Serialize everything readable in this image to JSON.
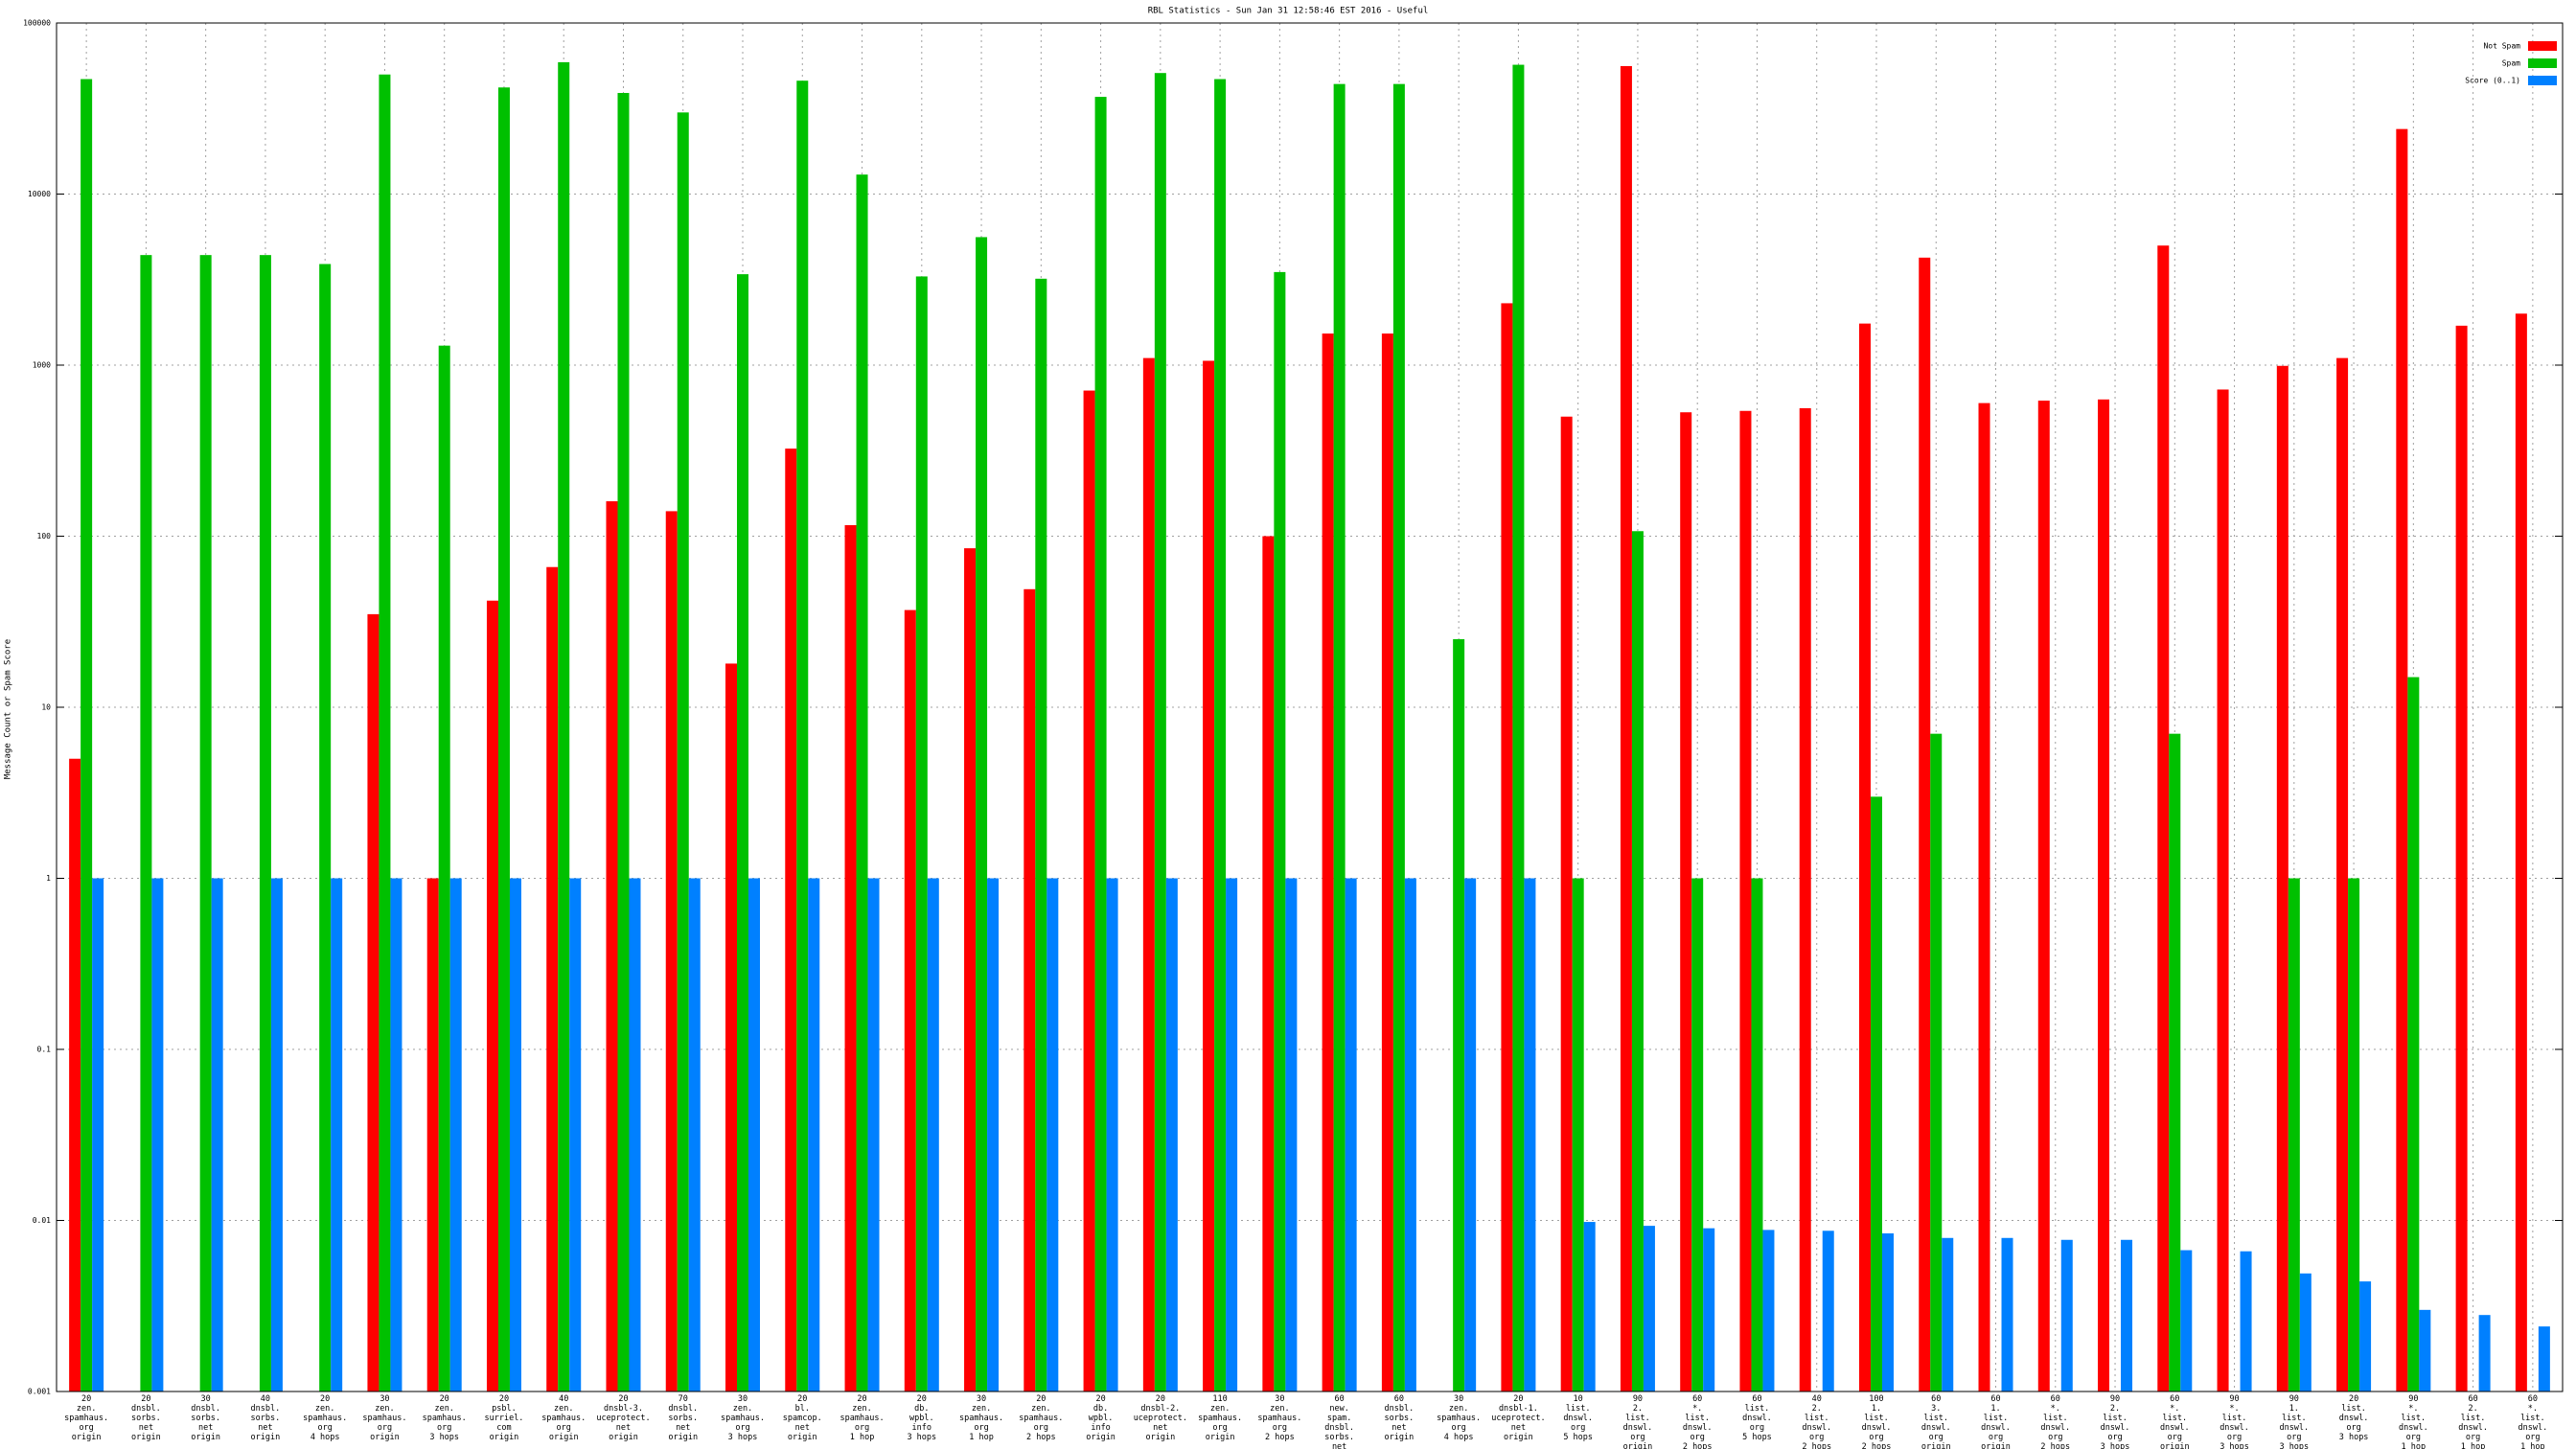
{
  "chart_data": {
    "type": "bar",
    "title": "RBL Statistics - Sun Jan 31 12:58:46 EST 2016 - Useful",
    "ylabel": "Message Count or Spam Score",
    "log_y": true,
    "grid": true,
    "legend": "top-right",
    "categories": [
      "20\nzen.\nspamhaus.\norg\norigin",
      "20\ndnsbl.\nsorbs.\nnet\norigin",
      "30\ndnsbl.\nsorbs.\nnet\norigin",
      "40\ndnsbl.\nsorbs.\nnet\norigin",
      "20\nzen.\nspamhaus.\norg\n4 hops",
      "30\nzen.\nspamhaus.\norg\norigin",
      "20\nzen.\nspamhaus.\norg\n3 hops",
      "20\npsbl.\nsurriel.\ncom\norigin",
      "40\nzen.\nspamhaus.\norg\norigin",
      "20\ndnsbl-3.\nuceprotect.\nnet\norigin",
      "70\ndnsbl.\nsorbs.\nnet\norigin",
      "30\nzen.\nspamhaus.\norg\n3 hops",
      "20\nbl.\nspamcop.\nnet\norigin",
      "20\nzen.\nspamhaus.\norg\n1 hop",
      "20\ndb.\nwpbl.\ninfo\n3 hops",
      "30\nzen.\nspamhaus.\norg\n1 hop",
      "20\nzen.\nspamhaus.\norg\n2 hops",
      "20\ndb.\nwpbl.\ninfo\norigin",
      "20\ndnsbl-2.\nuceprotect.\nnet\norigin",
      "110\nzen.\nspamhaus.\norg\norigin",
      "30\nzen.\nspamhaus.\norg\n2 hops",
      "60\nnew.\nspam.\ndnsbl.\nsorbs.\nnet\norigin",
      "60\ndnsbl.\nsorbs.\nnet\norigin",
      "30\nzen.\nspamhaus.\norg\n4 hops",
      "20\ndnsbl-1.\nuceprotect.\nnet\norigin",
      "10\nlist.\ndnswl.\norg\n5 hops",
      "90\n2.\nlist.\ndnswl.\norg\norigin",
      "60\n*.\nlist.\ndnswl.\norg\n2 hops",
      "60\nlist.\ndnswl.\norg\n5 hops",
      "40\n2.\nlist.\ndnswl.\norg\n2 hops",
      "100\n1.\nlist.\ndnswl.\norg\n2 hops",
      "60\n3.\nlist.\ndnswl.\norg\norigin",
      "60\n1.\nlist.\ndnswl.\norg\norigin",
      "60\n*.\nlist.\ndnswl.\norg\n2 hops",
      "90\n2.\nlist.\ndnswl.\norg\n3 hops",
      "60\n*.\nlist.\ndnswl.\norg\norigin",
      "90\n*.\nlist.\ndnswl.\norg\n3 hops",
      "90\n1.\nlist.\ndnswl.\norg\n3 hops",
      "20\nlist.\ndnswl.\norg\n3 hops",
      "90\n*.\nlist.\ndnswl.\norg\n1 hop",
      "60\n2.\nlist.\ndnswl.\norg\n1 hop",
      "60\n*.\nlist.\ndnswl.\norg\n1 hop"
    ],
    "series": [
      {
        "name": "Not Spam",
        "color": "#ff0000",
        "values": [
          5,
          null,
          null,
          null,
          null,
          35,
          1,
          42,
          66,
          160,
          140,
          18,
          325,
          116,
          37,
          85,
          49,
          710,
          1100,
          1060,
          100,
          1530,
          1530,
          null,
          2300,
          500,
          56000,
          530,
          540,
          560,
          1750,
          4250,
          600,
          620,
          630,
          5000,
          720,
          990,
          1100,
          24000,
          1700,
          2000
        ]
      },
      {
        "name": "Spam",
        "color": "#00c000",
        "values": [
          47000,
          4400,
          4400,
          4400,
          3900,
          50000,
          1300,
          42000,
          59000,
          39000,
          30000,
          3400,
          46000,
          13000,
          3300,
          5600,
          3200,
          37000,
          51000,
          47000,
          3500,
          44000,
          44000,
          25,
          57000,
          1,
          107,
          1,
          1,
          null,
          3,
          7,
          null,
          null,
          null,
          7,
          null,
          1,
          1,
          15,
          null,
          null
        ]
      },
      {
        "name": "Score (0..1)",
        "color": "#0080ff",
        "values": [
          1,
          1,
          1,
          1,
          1,
          1,
          1,
          1,
          1,
          1,
          1,
          1,
          1,
          1,
          1,
          1,
          1,
          1,
          1,
          1,
          1,
          1,
          1,
          1,
          1,
          0.0098,
          0.0093,
          0.009,
          0.0088,
          0.0087,
          0.0084,
          0.0079,
          0.0079,
          0.0077,
          0.0077,
          0.0067,
          0.0066,
          0.0049,
          0.0044,
          0.003,
          0.0028,
          0.0024
        ]
      }
    ],
    "ylim": [
      0.001,
      100000
    ],
    "yticks": [
      0.001,
      0.01,
      0.1,
      1,
      10,
      100,
      1000,
      10000,
      100000
    ]
  }
}
